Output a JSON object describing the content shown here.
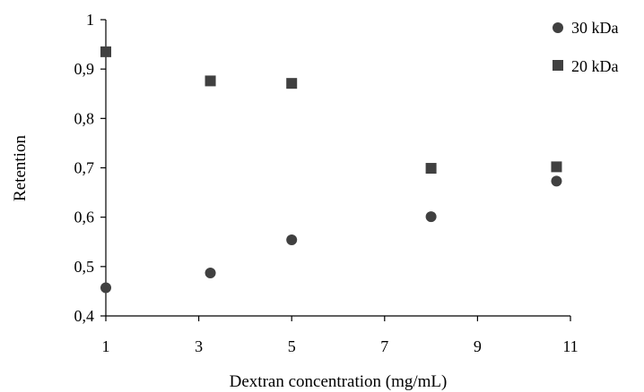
{
  "chart_data": {
    "type": "scatter",
    "xlabel": "Dextran concentration (mg/mL)",
    "ylabel": "Retention",
    "xlim": [
      1,
      11
    ],
    "ylim": [
      0.4,
      1.0
    ],
    "x_ticks": [
      "1",
      "3",
      "5",
      "7",
      "9",
      "11"
    ],
    "y_ticks": [
      "0,4",
      "0,5",
      "0,6",
      "0,7",
      "0,8",
      "0,9",
      "1"
    ],
    "grid": false,
    "legend_position": "top-right",
    "series": [
      {
        "name": "30 kDa",
        "marker": "circle",
        "color": "#404040",
        "x": [
          1.0,
          3.25,
          5.0,
          8.0,
          10.7
        ],
        "y": [
          0.457,
          0.487,
          0.554,
          0.601,
          0.673
        ]
      },
      {
        "name": "20 kDa",
        "marker": "square",
        "color": "#404040",
        "x": [
          1.0,
          3.25,
          5.0,
          8.0,
          10.7
        ],
        "y": [
          0.935,
          0.876,
          0.871,
          0.699,
          0.702
        ]
      }
    ]
  }
}
